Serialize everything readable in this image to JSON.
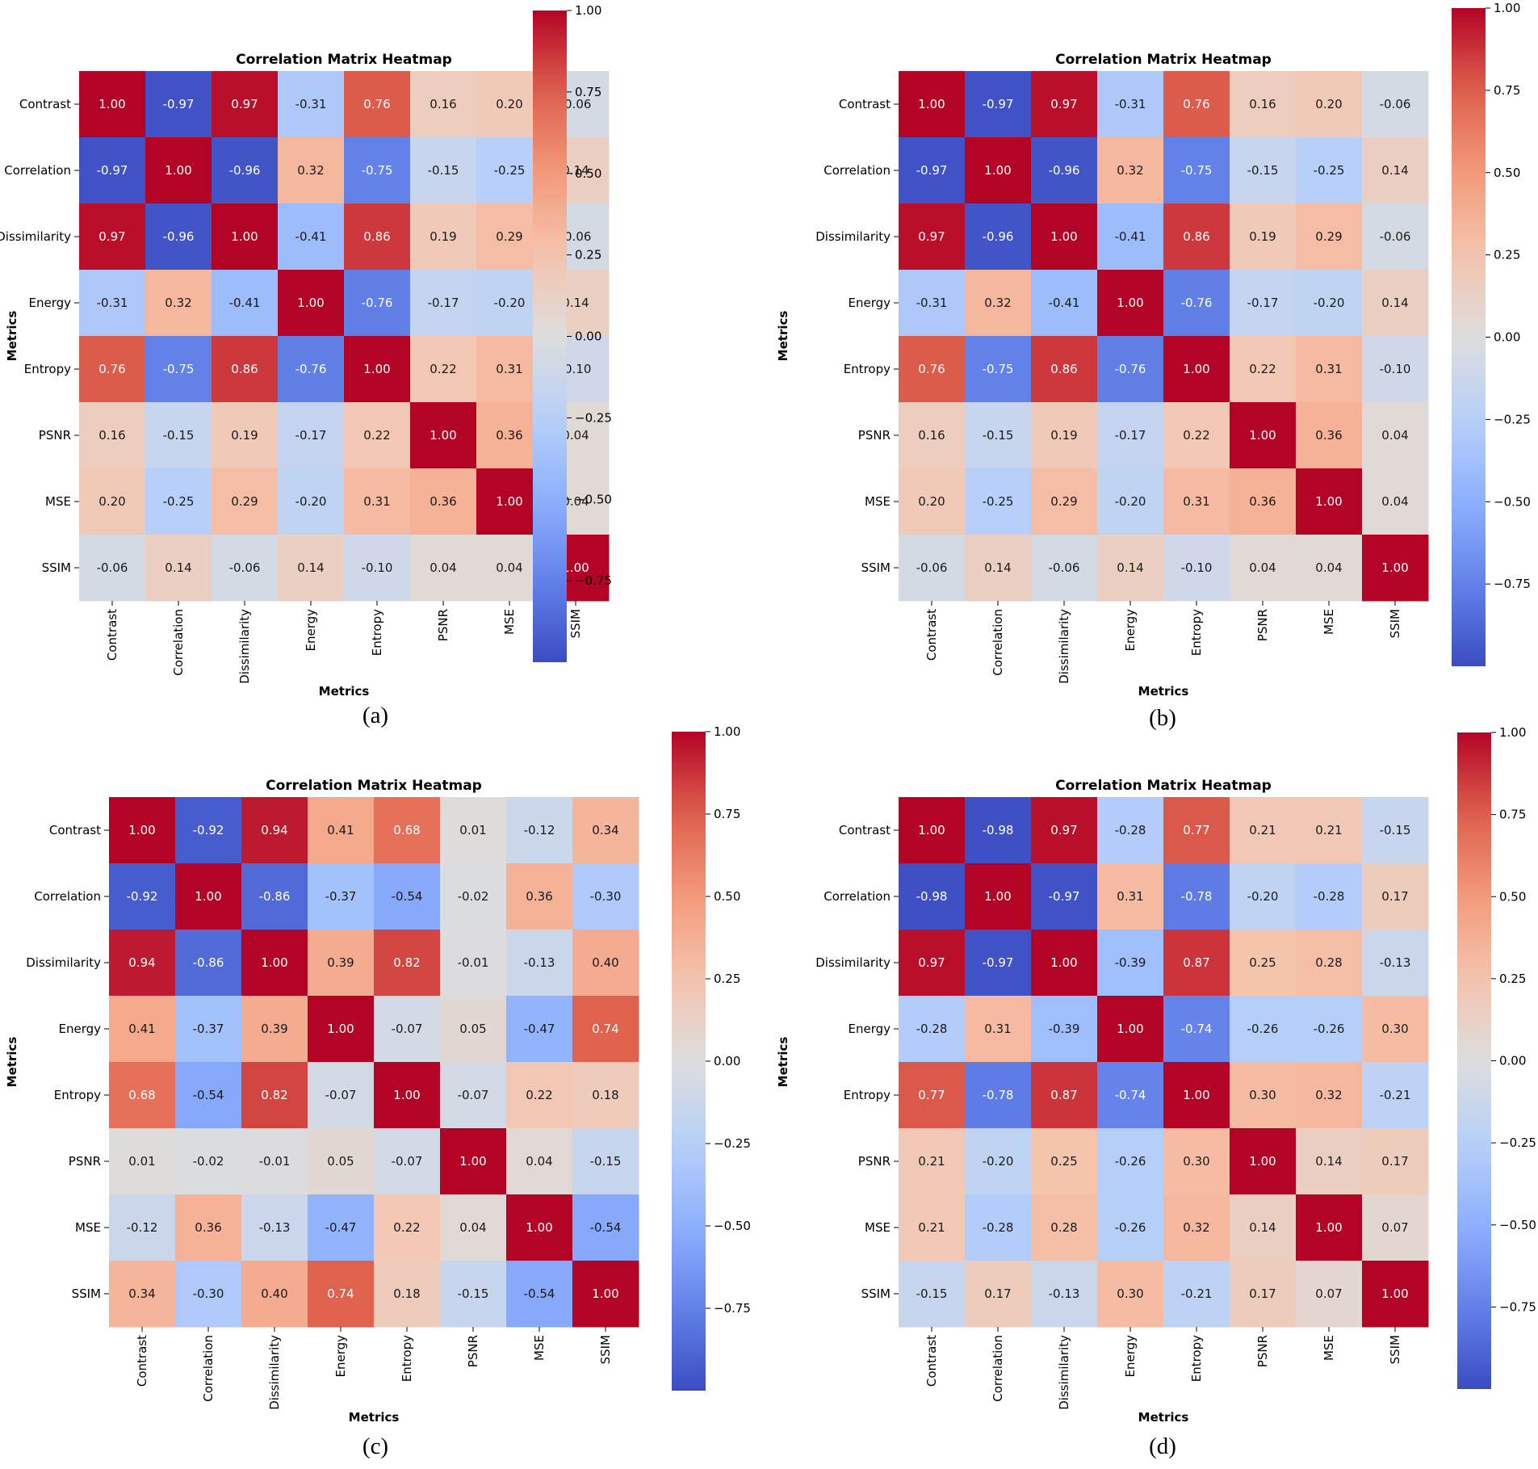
{
  "chart_data": [
    {
      "type": "heatmap",
      "title": "Correlation Matrix Heatmap",
      "xlabel": "Metrics",
      "ylabel": "Metrics",
      "caption": "(a)",
      "labels": [
        "Contrast",
        "Correlation",
        "Dissimilarity",
        "Energy",
        "Entropy",
        "PSNR",
        "MSE",
        "SSIM"
      ],
      "colorbar": {
        "colormap": "coolwarm",
        "min": -1,
        "max": 1,
        "ticks": [
          "1.00",
          "0.75",
          "0.50",
          "0.25",
          "0.00",
          "−0.25",
          "−0.50",
          "−0.75"
        ],
        "tick_values": [
          1,
          0.75,
          0.5,
          0.25,
          0,
          -0.25,
          -0.5,
          -0.75
        ]
      },
      "values": [
        [
          1.0,
          -0.97,
          0.97,
          -0.31,
          0.76,
          0.16,
          0.2,
          -0.06
        ],
        [
          -0.97,
          1.0,
          -0.96,
          0.32,
          -0.75,
          -0.15,
          -0.25,
          0.14
        ],
        [
          0.97,
          -0.96,
          1.0,
          -0.41,
          0.86,
          0.19,
          0.29,
          -0.06
        ],
        [
          -0.31,
          0.32,
          -0.41,
          1.0,
          -0.76,
          -0.17,
          -0.2,
          0.14
        ],
        [
          0.76,
          -0.75,
          0.86,
          -0.76,
          1.0,
          0.22,
          0.31,
          -0.1
        ],
        [
          0.16,
          -0.15,
          0.19,
          -0.17,
          0.22,
          1.0,
          0.36,
          0.04
        ],
        [
          0.2,
          -0.25,
          0.29,
          -0.2,
          0.31,
          0.36,
          1.0,
          0.04
        ],
        [
          -0.06,
          0.14,
          -0.06,
          0.14,
          -0.1,
          0.04,
          0.04,
          1.0
        ]
      ]
    },
    {
      "type": "heatmap",
      "title": "Correlation Matrix Heatmap",
      "xlabel": "Metrics",
      "ylabel": "Metrics",
      "caption": "(b)",
      "labels": [
        "Contrast",
        "Correlation",
        "Dissimilarity",
        "Energy",
        "Entropy",
        "PSNR",
        "MSE",
        "SSIM"
      ],
      "colorbar": {
        "colormap": "coolwarm",
        "min": -1,
        "max": 1,
        "ticks": [
          "1.00",
          "0.75",
          "0.50",
          "0.25",
          "0.00",
          "−0.25",
          "−0.50",
          "−0.75"
        ],
        "tick_values": [
          1,
          0.75,
          0.5,
          0.25,
          0,
          -0.25,
          -0.5,
          -0.75
        ]
      },
      "values": [
        [
          1.0,
          -0.97,
          0.97,
          -0.31,
          0.76,
          0.16,
          0.2,
          -0.06
        ],
        [
          -0.97,
          1.0,
          -0.96,
          0.32,
          -0.75,
          -0.15,
          -0.25,
          0.14
        ],
        [
          0.97,
          -0.96,
          1.0,
          -0.41,
          0.86,
          0.19,
          0.29,
          -0.06
        ],
        [
          -0.31,
          0.32,
          -0.41,
          1.0,
          -0.76,
          -0.17,
          -0.2,
          0.14
        ],
        [
          0.76,
          -0.75,
          0.86,
          -0.76,
          1.0,
          0.22,
          0.31,
          -0.1
        ],
        [
          0.16,
          -0.15,
          0.19,
          -0.17,
          0.22,
          1.0,
          0.36,
          0.04
        ],
        [
          0.2,
          -0.25,
          0.29,
          -0.2,
          0.31,
          0.36,
          1.0,
          0.04
        ],
        [
          -0.06,
          0.14,
          -0.06,
          0.14,
          -0.1,
          0.04,
          0.04,
          1.0
        ]
      ]
    },
    {
      "type": "heatmap",
      "title": "Correlation Matrix Heatmap",
      "xlabel": "Metrics",
      "ylabel": "Metrics",
      "caption": "(c)",
      "labels": [
        "Contrast",
        "Correlation",
        "Dissimilarity",
        "Energy",
        "Entropy",
        "PSNR",
        "MSE",
        "SSIM"
      ],
      "colorbar": {
        "colormap": "coolwarm",
        "min": -1,
        "max": 1,
        "ticks": [
          "1.00",
          "0.75",
          "0.50",
          "0.25",
          "0.00",
          "−0.25",
          "−0.50",
          "−0.75"
        ],
        "tick_values": [
          1,
          0.75,
          0.5,
          0.25,
          0,
          -0.25,
          -0.5,
          -0.75
        ]
      },
      "values": [
        [
          1.0,
          -0.92,
          0.94,
          0.41,
          0.68,
          0.01,
          -0.12,
          0.34
        ],
        [
          -0.92,
          1.0,
          -0.86,
          -0.37,
          -0.54,
          -0.02,
          0.36,
          -0.3
        ],
        [
          0.94,
          -0.86,
          1.0,
          0.39,
          0.82,
          -0.01,
          -0.13,
          0.4
        ],
        [
          0.41,
          -0.37,
          0.39,
          1.0,
          -0.07,
          0.05,
          -0.47,
          0.74
        ],
        [
          0.68,
          -0.54,
          0.82,
          -0.07,
          1.0,
          -0.07,
          0.22,
          0.18
        ],
        [
          0.01,
          -0.02,
          -0.01,
          0.05,
          -0.07,
          1.0,
          0.04,
          -0.15
        ],
        [
          -0.12,
          0.36,
          -0.13,
          -0.47,
          0.22,
          0.04,
          1.0,
          -0.54
        ],
        [
          0.34,
          -0.3,
          0.4,
          0.74,
          0.18,
          -0.15,
          -0.54,
          1.0
        ]
      ]
    },
    {
      "type": "heatmap",
      "title": "Correlation Matrix Heatmap",
      "xlabel": "Metrics",
      "ylabel": "Metrics",
      "caption": "(d)",
      "labels": [
        "Contrast",
        "Correlation",
        "Dissimilarity",
        "Energy",
        "Entropy",
        "PSNR",
        "MSE",
        "SSIM"
      ],
      "colorbar": {
        "colormap": "coolwarm",
        "min": -1,
        "max": 1,
        "ticks": [
          "1.00",
          "0.75",
          "0.50",
          "0.25",
          "0.00",
          "−0.25",
          "−0.50",
          "−0.75"
        ],
        "tick_values": [
          1,
          0.75,
          0.5,
          0.25,
          0,
          -0.25,
          -0.5,
          -0.75
        ]
      },
      "values": [
        [
          1.0,
          -0.98,
          0.97,
          -0.28,
          0.77,
          0.21,
          0.21,
          -0.15
        ],
        [
          -0.98,
          1.0,
          -0.97,
          0.31,
          -0.78,
          -0.2,
          -0.28,
          0.17
        ],
        [
          0.97,
          -0.97,
          1.0,
          -0.39,
          0.87,
          0.25,
          0.28,
          -0.13
        ],
        [
          -0.28,
          0.31,
          -0.39,
          1.0,
          -0.74,
          -0.26,
          -0.26,
          0.3
        ],
        [
          0.77,
          -0.78,
          0.87,
          -0.74,
          1.0,
          0.3,
          0.32,
          -0.21
        ],
        [
          0.21,
          -0.2,
          0.25,
          -0.26,
          0.3,
          1.0,
          0.14,
          0.17
        ],
        [
          0.21,
          -0.28,
          0.28,
          -0.26,
          0.32,
          0.14,
          1.0,
          0.07
        ],
        [
          -0.15,
          0.17,
          -0.13,
          0.3,
          -0.21,
          0.17,
          0.07,
          1.0
        ]
      ]
    }
  ]
}
